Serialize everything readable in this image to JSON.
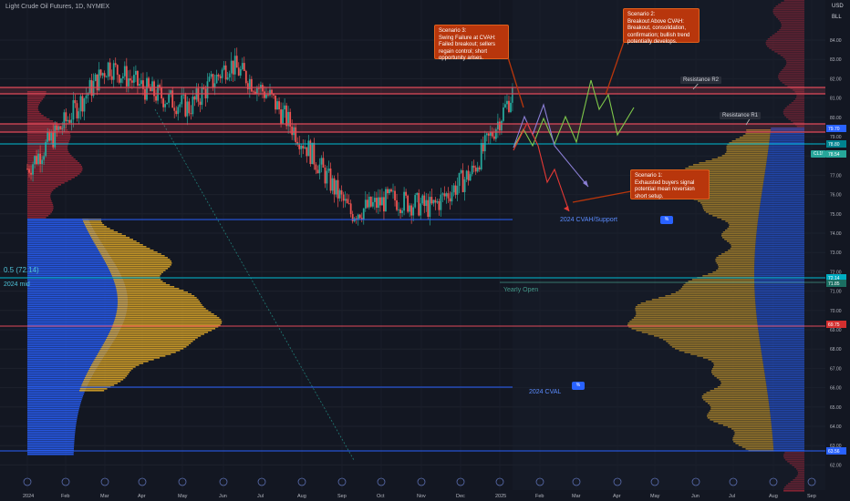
{
  "header": {
    "title": "Light Crude Oil Futures, 1D, NYMEX"
  },
  "price_axis": {
    "currency": "USD",
    "unit": "BLL",
    "ticks": [
      "84.00",
      "83.00",
      "82.00",
      "81.00",
      "80.00",
      "79.00",
      "78.00",
      "77.00",
      "76.00",
      "75.00",
      "74.00",
      "73.00",
      "72.00",
      "71.00",
      "70.00",
      "69.00",
      "68.00",
      "67.00",
      "66.00",
      "65.00",
      "64.00",
      "63.00",
      "62.00"
    ]
  },
  "time_axis": {
    "ticks": [
      "2024",
      "Feb",
      "Mar",
      "Apr",
      "May",
      "Jun",
      "Jul",
      "Aug",
      "Sep",
      "Oct",
      "Nov",
      "Dec",
      "2025",
      "Feb",
      "Mar",
      "Apr",
      "May",
      "Jun",
      "Jul",
      "Aug",
      "Sep"
    ]
  },
  "levels": {
    "resistance_r2": {
      "label": "Resistance R2",
      "value": 81.4
    },
    "resistance_r1": {
      "label": "Resistance R1",
      "value": 79.6
    },
    "cvah": {
      "label": "2024 CVAH/Support",
      "value": 75.0
    },
    "mid": {
      "label": "0.5 (72.14)",
      "sublabel": "2024 mid",
      "value": 72.14
    },
    "yearly_open": {
      "label": "Yearly Open",
      "value": 71.85
    },
    "poc": {
      "value": 69.75
    },
    "cval": {
      "label": "2024 CVAL",
      "value": 66.7
    },
    "low": {
      "value": 63.56
    },
    "upper_cyan": {
      "value": 78.8
    }
  },
  "price_labels": {
    "a": "79.70",
    "b": "78.80",
    "current": "78.54",
    "current_name": "CL1!",
    "mid": "72.14",
    "yearly_open": "71.85",
    "poc": "69.75",
    "low": "63.56"
  },
  "callouts": {
    "scenario1": "Scenario 1:\nExhausted buyers signal potential mean reversion short setup.",
    "scenario2": "Scenario 2:\nBreakout Above CVAH: Breakout, consolidation, confirmation; bullish trend potentially develops.",
    "scenario3": "Scenario 3:\nSwing Failure at CVAH: Failed breakout; sellers regain control; short opportunity arises."
  },
  "colors": {
    "background": "#131722",
    "up": "#26a69a",
    "down": "#ef5350",
    "volume_value_area": "#f0b429",
    "volume_blue": "#2962ff",
    "volume_red": "#a8283a",
    "resistance": "#e04a5a",
    "cyan": "#00bcd4",
    "blue_line": "#2962ff",
    "callout": "#b8360c"
  },
  "chart_data": {
    "type": "candlestick",
    "title": "Light Crude Oil Futures, 1D, NYMEX",
    "monthly_closes": {
      "x": [
        "2024-01",
        "2024-02",
        "2024-03",
        "2024-04",
        "2024-05",
        "2024-06",
        "2024-07",
        "2024-08",
        "2024-09",
        "2024-10",
        "2024-11",
        "2024-12",
        "2025-01"
      ],
      "y": [
        72.0,
        76.5,
        81.3,
        79.0,
        77.5,
        81.5,
        78.5,
        73.5,
        68.0,
        69.3,
        68.5,
        71.7,
        78.8
      ]
    },
    "ylim": [
      62,
      85.5
    ],
    "scenarios": [
      {
        "name": "Scenario 1",
        "path": [
          78.8,
          80.6,
          77.2,
          78.2,
          75.7
        ]
      },
      {
        "name": "Scenario 2",
        "path": [
          78.8,
          80.6,
          79.0,
          80.3,
          79.2,
          80.2,
          79.1,
          82.0,
          80.5,
          81.0,
          79.8,
          80.8
        ]
      },
      {
        "name": "Scenario 3",
        "path": [
          78.8,
          80.3,
          79.3,
          81.0,
          78.6,
          76.2
        ]
      }
    ]
  }
}
